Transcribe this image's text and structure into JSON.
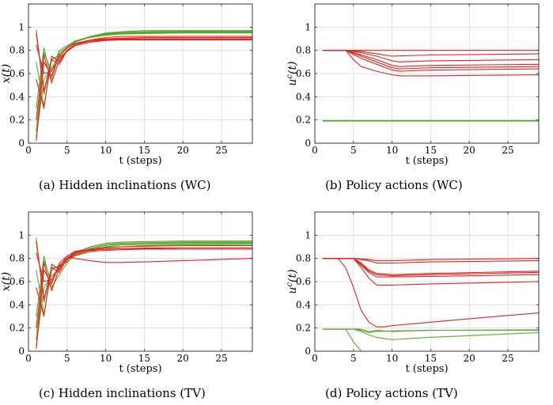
{
  "figure": {
    "colors": {
      "red": "#e8211e",
      "green": "#58a82a",
      "axis": "#262626",
      "grid": "#d9d9d9"
    },
    "captions": [
      "(a)  Hidden inclinations (WC)",
      "(b)  Policy actions (WC)",
      "(c)  Hidden inclinations (TV)",
      "(d)  Policy actions (TV)"
    ]
  },
  "chart_data": [
    {
      "type": "line",
      "xlabel": "t (steps)",
      "ylabel": "x(t)",
      "xlim": [
        0,
        29
      ],
      "ylim": [
        0,
        1.2
      ],
      "xticks": [
        0,
        5,
        10,
        15,
        20,
        25
      ],
      "yticks": [
        0,
        0.2,
        0.4,
        0.6,
        0.8,
        1
      ],
      "grid": true,
      "series": [
        {
          "color": "green",
          "x": [
            1,
            2,
            3,
            4,
            5,
            6,
            8,
            10,
            12,
            15,
            20,
            29
          ],
          "y": [
            0.98,
            0.42,
            0.72,
            0.76,
            0.82,
            0.87,
            0.92,
            0.95,
            0.96,
            0.97,
            0.97,
            0.97
          ]
        },
        {
          "color": "green",
          "x": [
            1,
            2,
            3,
            4,
            5,
            6,
            8,
            10,
            12,
            15,
            20,
            29
          ],
          "y": [
            0.05,
            0.55,
            0.65,
            0.75,
            0.82,
            0.87,
            0.92,
            0.945,
            0.955,
            0.96,
            0.965,
            0.965
          ]
        },
        {
          "color": "green",
          "x": [
            1,
            2,
            3,
            4,
            5,
            6,
            8,
            10,
            12,
            15,
            20,
            29
          ],
          "y": [
            0.3,
            0.82,
            0.55,
            0.78,
            0.83,
            0.88,
            0.92,
            0.94,
            0.95,
            0.955,
            0.96,
            0.96
          ]
        },
        {
          "color": "green",
          "x": [
            1,
            2,
            3,
            4,
            5,
            6,
            8,
            10,
            12,
            15,
            20,
            29
          ],
          "y": [
            0.7,
            0.32,
            0.72,
            0.76,
            0.82,
            0.87,
            0.915,
            0.935,
            0.945,
            0.95,
            0.955,
            0.955
          ]
        },
        {
          "color": "green",
          "x": [
            1,
            2,
            3,
            4,
            5,
            6,
            8,
            10,
            12,
            15,
            20,
            29
          ],
          "y": [
            0.1,
            0.78,
            0.62,
            0.8,
            0.84,
            0.88,
            0.91,
            0.93,
            0.94,
            0.945,
            0.95,
            0.95
          ]
        },
        {
          "color": "red",
          "x": [
            1,
            2,
            3,
            4,
            5,
            6,
            8,
            10,
            12,
            15,
            20,
            29
          ],
          "y": [
            0.95,
            0.45,
            0.72,
            0.68,
            0.8,
            0.85,
            0.89,
            0.91,
            0.92,
            0.92,
            0.92,
            0.92
          ]
        },
        {
          "color": "red",
          "x": [
            1,
            2,
            3,
            4,
            5,
            6,
            8,
            10,
            12,
            15,
            20,
            29
          ],
          "y": [
            0.02,
            0.7,
            0.58,
            0.76,
            0.82,
            0.86,
            0.89,
            0.9,
            0.905,
            0.91,
            0.91,
            0.91
          ]
        },
        {
          "color": "red",
          "x": [
            1,
            2,
            3,
            4,
            5,
            6,
            8,
            10,
            12,
            15,
            20,
            29
          ],
          "y": [
            0.55,
            0.3,
            0.75,
            0.7,
            0.8,
            0.85,
            0.88,
            0.895,
            0.9,
            0.9,
            0.9,
            0.9
          ]
        },
        {
          "color": "red",
          "x": [
            1,
            2,
            3,
            4,
            5,
            6,
            8,
            10,
            12,
            15,
            20,
            29
          ],
          "y": [
            0.85,
            0.6,
            0.62,
            0.74,
            0.79,
            0.84,
            0.87,
            0.885,
            0.89,
            0.89,
            0.89,
            0.89
          ]
        },
        {
          "color": "red",
          "x": [
            1,
            2,
            3,
            4,
            5,
            6,
            8,
            10,
            12,
            15,
            20,
            29
          ],
          "y": [
            0.2,
            0.76,
            0.52,
            0.72,
            0.8,
            0.85,
            0.88,
            0.89,
            0.895,
            0.895,
            0.895,
            0.895
          ]
        }
      ]
    },
    {
      "type": "line",
      "xlabel": "t (steps)",
      "ylabel": "u^c(t)",
      "xlim": [
        0,
        29
      ],
      "ylim": [
        0,
        1.2
      ],
      "xticks": [
        0,
        5,
        10,
        15,
        20,
        25
      ],
      "yticks": [
        0,
        0.2,
        0.4,
        0.6,
        0.8,
        1
      ],
      "grid": true,
      "series": [
        {
          "color": "red",
          "x": [
            1,
            4,
            29
          ],
          "y": [
            0.8,
            0.8,
            0.8
          ]
        },
        {
          "color": "red",
          "x": [
            1,
            4,
            6,
            8,
            10,
            15,
            29
          ],
          "y": [
            0.8,
            0.8,
            0.79,
            0.77,
            0.75,
            0.76,
            0.77
          ]
        },
        {
          "color": "red",
          "x": [
            1,
            4,
            6,
            8,
            10,
            11,
            15,
            29
          ],
          "y": [
            0.8,
            0.8,
            0.78,
            0.75,
            0.71,
            0.7,
            0.71,
            0.72
          ]
        },
        {
          "color": "red",
          "x": [
            1,
            4,
            6,
            8,
            10,
            11,
            15,
            29
          ],
          "y": [
            0.8,
            0.8,
            0.76,
            0.72,
            0.67,
            0.66,
            0.67,
            0.68
          ]
        },
        {
          "color": "red",
          "x": [
            1,
            4,
            6,
            8,
            10,
            11,
            15,
            29
          ],
          "y": [
            0.8,
            0.8,
            0.75,
            0.7,
            0.65,
            0.64,
            0.65,
            0.66
          ]
        },
        {
          "color": "red",
          "x": [
            1,
            4,
            6,
            8,
            10,
            11,
            15,
            29
          ],
          "y": [
            0.8,
            0.8,
            0.73,
            0.68,
            0.63,
            0.62,
            0.63,
            0.64
          ]
        },
        {
          "color": "red",
          "x": [
            1,
            4,
            5,
            6,
            8,
            10,
            11,
            15,
            29
          ],
          "y": [
            0.8,
            0.8,
            0.72,
            0.66,
            0.62,
            0.59,
            0.58,
            0.58,
            0.59
          ]
        },
        {
          "color": "green",
          "x": [
            1,
            29
          ],
          "y": [
            0.19,
            0.19
          ]
        },
        {
          "color": "green",
          "x": [
            1,
            29
          ],
          "y": [
            0.195,
            0.195
          ]
        }
      ]
    },
    {
      "type": "line",
      "xlabel": "t (steps)",
      "ylabel": "x(t)",
      "xlim": [
        0,
        29
      ],
      "ylim": [
        0,
        1.2
      ],
      "xticks": [
        0,
        5,
        10,
        15,
        20,
        25
      ],
      "yticks": [
        0,
        0.2,
        0.4,
        0.6,
        0.8,
        1
      ],
      "grid": true,
      "series": [
        {
          "color": "green",
          "x": [
            1,
            2,
            3,
            4,
            5,
            6,
            8,
            10,
            12,
            15,
            20,
            29
          ],
          "y": [
            0.98,
            0.42,
            0.72,
            0.72,
            0.78,
            0.85,
            0.9,
            0.93,
            0.94,
            0.945,
            0.95,
            0.95
          ]
        },
        {
          "color": "green",
          "x": [
            1,
            2,
            3,
            4,
            5,
            6,
            8,
            10,
            12,
            15,
            20,
            29
          ],
          "y": [
            0.05,
            0.55,
            0.65,
            0.7,
            0.8,
            0.86,
            0.89,
            0.92,
            0.93,
            0.935,
            0.94,
            0.94
          ]
        },
        {
          "color": "green",
          "x": [
            1,
            2,
            3,
            4,
            5,
            6,
            8,
            10,
            12,
            15,
            20,
            29
          ],
          "y": [
            0.3,
            0.82,
            0.55,
            0.66,
            0.76,
            0.84,
            0.88,
            0.91,
            0.925,
            0.93,
            0.935,
            0.935
          ]
        },
        {
          "color": "green",
          "x": [
            1,
            2,
            3,
            4,
            5,
            6,
            8,
            10,
            12,
            15,
            20,
            29
          ],
          "y": [
            0.7,
            0.32,
            0.7,
            0.74,
            0.8,
            0.85,
            0.87,
            0.89,
            0.9,
            0.91,
            0.915,
            0.92
          ]
        },
        {
          "color": "green",
          "x": [
            1,
            2,
            3,
            4,
            5,
            6,
            8,
            10,
            12,
            15,
            20,
            29
          ],
          "y": [
            0.1,
            0.78,
            0.6,
            0.73,
            0.77,
            0.82,
            0.86,
            0.9,
            0.915,
            0.92,
            0.925,
            0.93
          ]
        },
        {
          "color": "red",
          "x": [
            1,
            2,
            3,
            4,
            5,
            6,
            8,
            10,
            12,
            15,
            20,
            29
          ],
          "y": [
            0.95,
            0.45,
            0.72,
            0.68,
            0.8,
            0.85,
            0.88,
            0.895,
            0.9,
            0.905,
            0.91,
            0.91
          ]
        },
        {
          "color": "red",
          "x": [
            1,
            2,
            3,
            4,
            5,
            6,
            8,
            10,
            12,
            15,
            20,
            29
          ],
          "y": [
            0.02,
            0.7,
            0.58,
            0.76,
            0.82,
            0.86,
            0.875,
            0.88,
            0.885,
            0.89,
            0.89,
            0.89
          ]
        },
        {
          "color": "red",
          "x": [
            1,
            2,
            3,
            4,
            5,
            6,
            8,
            10,
            12,
            15,
            20,
            29
          ],
          "y": [
            0.55,
            0.3,
            0.75,
            0.7,
            0.8,
            0.84,
            0.87,
            0.88,
            0.885,
            0.885,
            0.89,
            0.89
          ]
        },
        {
          "color": "red",
          "x": [
            1,
            2,
            3,
            4,
            5,
            6,
            8,
            10,
            12,
            15,
            20,
            29
          ],
          "y": [
            0.85,
            0.6,
            0.62,
            0.74,
            0.79,
            0.83,
            0.86,
            0.87,
            0.875,
            0.88,
            0.88,
            0.88
          ]
        },
        {
          "color": "red",
          "x": [
            1,
            2,
            3,
            4,
            5,
            6,
            7,
            8,
            10,
            12,
            15,
            20,
            29
          ],
          "y": [
            0.2,
            0.76,
            0.52,
            0.72,
            0.82,
            0.8,
            0.79,
            0.78,
            0.765,
            0.765,
            0.77,
            0.78,
            0.8
          ]
        }
      ]
    },
    {
      "type": "line",
      "xlabel": "t (steps)",
      "ylabel": "u^c(t)",
      "xlim": [
        0,
        29
      ],
      "ylim": [
        0,
        1.2
      ],
      "xticks": [
        0,
        5,
        10,
        15,
        20,
        25
      ],
      "yticks": [
        0,
        0.2,
        0.4,
        0.6,
        0.8,
        1
      ],
      "grid": true,
      "series": [
        {
          "color": "red",
          "x": [
            1,
            5,
            7,
            8,
            10,
            15,
            29
          ],
          "y": [
            0.8,
            0.8,
            0.79,
            0.78,
            0.78,
            0.79,
            0.8
          ]
        },
        {
          "color": "red",
          "x": [
            1,
            5,
            7,
            8,
            10,
            15,
            29
          ],
          "y": [
            0.8,
            0.8,
            0.78,
            0.76,
            0.76,
            0.77,
            0.78
          ]
        },
        {
          "color": "red",
          "x": [
            1,
            5,
            6,
            7,
            8,
            10,
            15,
            29
          ],
          "y": [
            0.8,
            0.8,
            0.76,
            0.7,
            0.67,
            0.66,
            0.67,
            0.69
          ]
        },
        {
          "color": "red",
          "x": [
            1,
            5,
            6,
            7,
            8,
            10,
            15,
            29
          ],
          "y": [
            0.8,
            0.8,
            0.75,
            0.69,
            0.66,
            0.65,
            0.66,
            0.68
          ]
        },
        {
          "color": "red",
          "x": [
            1,
            5,
            6,
            7,
            8,
            10,
            15,
            29
          ],
          "y": [
            0.8,
            0.8,
            0.74,
            0.68,
            0.64,
            0.64,
            0.645,
            0.66
          ]
        },
        {
          "color": "red",
          "x": [
            1,
            5,
            6,
            7,
            8,
            10,
            15,
            29
          ],
          "y": [
            0.8,
            0.8,
            0.72,
            0.63,
            0.57,
            0.57,
            0.58,
            0.6
          ]
        },
        {
          "color": "red",
          "x": [
            1,
            3,
            4,
            5,
            6,
            7,
            8,
            9,
            10,
            15,
            20,
            29
          ],
          "y": [
            0.8,
            0.8,
            0.72,
            0.55,
            0.35,
            0.25,
            0.21,
            0.21,
            0.22,
            0.25,
            0.28,
            0.33
          ]
        },
        {
          "color": "green",
          "x": [
            1,
            5,
            6,
            7,
            8,
            10,
            15,
            29
          ],
          "y": [
            0.19,
            0.19,
            0.19,
            0.17,
            0.18,
            0.17,
            0.18,
            0.18
          ]
        },
        {
          "color": "green",
          "x": [
            1,
            5,
            6,
            7,
            8,
            10,
            15,
            29
          ],
          "y": [
            0.19,
            0.19,
            0.18,
            0.16,
            0.17,
            0.175,
            0.18,
            0.185
          ]
        },
        {
          "color": "green",
          "x": [
            1,
            5,
            6,
            7,
            8,
            9,
            10,
            15,
            29
          ],
          "y": [
            0.19,
            0.19,
            0.17,
            0.14,
            0.12,
            0.11,
            0.1,
            0.12,
            0.16
          ]
        },
        {
          "color": "green",
          "x": [
            1,
            4,
            5,
            6
          ],
          "y": [
            0.19,
            0.19,
            0.08,
            0.0
          ]
        }
      ]
    }
  ]
}
